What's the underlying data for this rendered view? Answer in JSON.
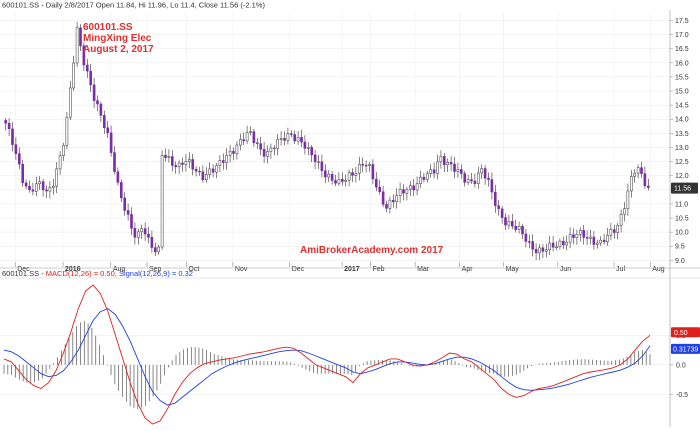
{
  "header": {
    "price_line": "600101.SS - Daily 2/8/2017 Open 11.84, Hi 11.96, Lo 11.4, Close 11.56 (-2.1%)"
  },
  "annotation": {
    "ticker": "600101.SS",
    "company": "MingXing Elec",
    "date": "August 2, 2017",
    "watermark": "AmiBrokerAcademy.com  2017"
  },
  "macd_header": {
    "prefix": "600101.SS - ",
    "macd_label": "MACD(12,26) = 0.50,",
    "signal_label": "Signal(12,26,9) = 0.32"
  },
  "colors": {
    "candle_up": "#ffffff",
    "candle_down": "#7b2ca8",
    "wick": "#333333",
    "annotation": "#e03030",
    "macd": "#e0201a",
    "signal": "#2040e0",
    "histogram": "#555555",
    "last_price_tag": "#333333",
    "macd_tag": "#e0201a",
    "signal_tag": "#2040e0",
    "grid": "#e2e2e2"
  },
  "chart_data": [
    {
      "type": "candlestick",
      "x_labels": [
        "Dec",
        "2016",
        "Aug",
        "Sep",
        "Oct",
        "Nov",
        "Dec",
        "2017",
        "Feb",
        "Mar",
        "Apr",
        "May",
        "Jun",
        "Jul",
        "Aug"
      ],
      "y_ticks": [
        9.0,
        9.5,
        10.0,
        10.5,
        11.0,
        11.5,
        12.0,
        12.5,
        13.0,
        13.5,
        14.0,
        14.5,
        15.0,
        15.5,
        16.0,
        16.5,
        17.0,
        17.5
      ],
      "ylim": [
        8.8,
        17.8
      ],
      "last_close": 11.56,
      "last_close_label": "11.56",
      "close_path": [
        13.8,
        13.3,
        12.6,
        11.8,
        11.4,
        11.6,
        11.7,
        11.4,
        11.8,
        12.5,
        13.4,
        15.3,
        17.2,
        16.2,
        15.4,
        14.6,
        14.1,
        13.6,
        12.6,
        11.5,
        10.8,
        10.2,
        9.8,
        10.3,
        9.7,
        9.3,
        12.8,
        12.7,
        12.5,
        12.3,
        12.5,
        12.4,
        12.2,
        12.0,
        12.1,
        12.2,
        12.4,
        12.7,
        12.9,
        13.1,
        13.3,
        13.5,
        13.2,
        12.9,
        12.8,
        13.0,
        13.2,
        13.4,
        13.5,
        13.3,
        13.1,
        12.8,
        12.6,
        12.3,
        12.0,
        11.8,
        11.7,
        11.9,
        12.1,
        12.2,
        12.4,
        12.3,
        11.8,
        11.3,
        10.9,
        11.1,
        11.3,
        11.5,
        11.6,
        11.7,
        11.9,
        12.0,
        12.2,
        12.7,
        12.5,
        12.3,
        12.1,
        11.9,
        11.8,
        11.9,
        12.2,
        11.8,
        11.2,
        10.7,
        10.4,
        10.2,
        10.1,
        9.9,
        9.6,
        9.4,
        9.3,
        9.4,
        9.5,
        9.6,
        9.7,
        9.8,
        9.9,
        9.9,
        9.8,
        9.7,
        9.6,
        9.8,
        10.0,
        10.3,
        11.0,
        11.8,
        12.3,
        11.9,
        11.56
      ],
      "gap_after_index": 25
    },
    {
      "type": "line",
      "series": [
        {
          "name": "MACD(12,26)",
          "values": [
            0.1,
            0.05,
            -0.1,
            -0.25,
            -0.35,
            -0.4,
            -0.3,
            -0.1,
            0.2,
            0.55,
            0.95,
            1.25,
            1.35,
            1.2,
            0.9,
            0.5,
            0.1,
            -0.3,
            -0.65,
            -0.9,
            -1.0,
            -0.95,
            -0.75,
            -0.5,
            -0.3,
            -0.15,
            -0.05,
            0.02,
            0.05,
            0.08,
            0.1,
            0.12,
            0.15,
            0.18,
            0.2,
            0.22,
            0.25,
            0.28,
            0.3,
            0.28,
            0.2,
            0.1,
            0.0,
            -0.05,
            -0.1,
            -0.15,
            -0.2,
            -0.3,
            -0.15,
            -0.05,
            0.0,
            0.05,
            0.1,
            0.1,
            0.05,
            0.0,
            -0.02,
            0.0,
            0.05,
            0.12,
            0.2,
            0.18,
            0.1,
            0.05,
            -0.05,
            -0.15,
            -0.25,
            -0.4,
            -0.5,
            -0.55,
            -0.52,
            -0.45,
            -0.4,
            -0.38,
            -0.35,
            -0.3,
            -0.25,
            -0.2,
            -0.15,
            -0.12,
            -0.1,
            -0.08,
            -0.05,
            0.0,
            0.1,
            0.25,
            0.4,
            0.5
          ]
        },
        {
          "name": "Signal(12,26,9)",
          "values": [
            0.25,
            0.22,
            0.15,
            0.05,
            -0.05,
            -0.15,
            -0.2,
            -0.18,
            -0.1,
            0.05,
            0.25,
            0.5,
            0.75,
            0.9,
            0.95,
            0.85,
            0.65,
            0.4,
            0.1,
            -0.2,
            -0.45,
            -0.6,
            -0.68,
            -0.65,
            -0.55,
            -0.45,
            -0.35,
            -0.25,
            -0.15,
            -0.08,
            -0.02,
            0.03,
            0.07,
            0.1,
            0.13,
            0.16,
            0.19,
            0.22,
            0.24,
            0.25,
            0.24,
            0.2,
            0.15,
            0.1,
            0.05,
            0.0,
            -0.05,
            -0.12,
            -0.15,
            -0.12,
            -0.08,
            -0.03,
            0.02,
            0.05,
            0.05,
            0.03,
            0.01,
            0.0,
            0.02,
            0.06,
            0.1,
            0.13,
            0.13,
            0.1,
            0.05,
            -0.02,
            -0.1,
            -0.2,
            -0.3,
            -0.38,
            -0.42,
            -0.43,
            -0.42,
            -0.41,
            -0.39,
            -0.36,
            -0.33,
            -0.29,
            -0.25,
            -0.21,
            -0.18,
            -0.15,
            -0.12,
            -0.09,
            -0.04,
            0.03,
            0.15,
            0.32
          ]
        }
      ],
      "y_ticks": [
        -0.5,
        0.0,
        0.5
      ],
      "ylim": [
        -1.05,
        1.4
      ],
      "macd_tag": "0.50",
      "signal_tag": "0.31739"
    }
  ]
}
